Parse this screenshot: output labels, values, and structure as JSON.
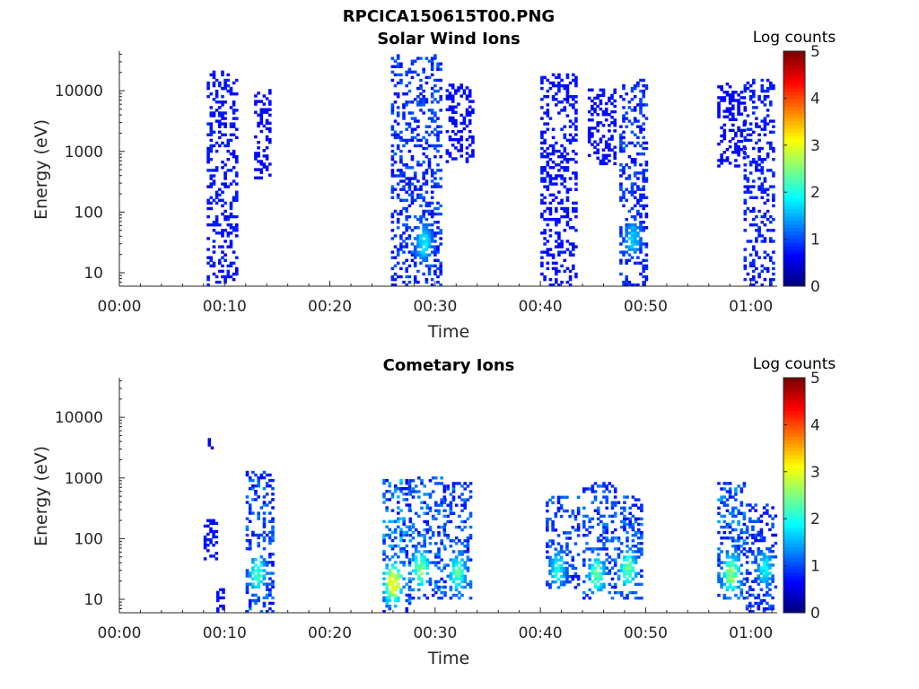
{
  "figure_title": "RPCICA150615T00.PNG",
  "chart_data": [
    {
      "type": "heatmap",
      "title": "Solar Wind Ions",
      "xlabel": "Time",
      "ylabel": "Energy (eV)",
      "x_ticks": [
        "00:00",
        "00:10",
        "00:20",
        "00:30",
        "00:40",
        "00:50",
        "01:00"
      ],
      "x_tick_minutes": [
        0,
        10,
        20,
        30,
        40,
        50,
        60
      ],
      "xlim_minutes": [
        0,
        62.5
      ],
      "y_scale": "log",
      "y_ticks": [
        "10",
        "100",
        "1000",
        "10000"
      ],
      "y_tick_values": [
        10,
        100,
        1000,
        10000
      ],
      "ylim": [
        6,
        45000
      ],
      "colorbar": {
        "label": "Log counts",
        "ticks": [
          "0",
          "1",
          "2",
          "3",
          "4",
          "5"
        ],
        "range": [
          0,
          5
        ],
        "colormap": "jet"
      },
      "bursts": [
        {
          "t": [
            8.3,
            11.2
          ],
          "e": [
            6,
            20000
          ],
          "count_peak": 0.7
        },
        {
          "t": [
            12.8,
            14.4
          ],
          "e": [
            350,
            10000
          ],
          "count_peak": 0.3
        },
        {
          "t": [
            25.8,
            30.5
          ],
          "e": [
            6,
            40000
          ],
          "count_peak": 1.7,
          "peak_t": 28.8,
          "peak_e": 30
        },
        {
          "t": [
            31.0,
            33.5
          ],
          "e": [
            650,
            13000
          ],
          "count_peak": 0.3
        },
        {
          "t": [
            40.0,
            43.5
          ],
          "e": [
            6,
            18000
          ],
          "count_peak": 0.6
        },
        {
          "t": [
            44.5,
            47.2
          ],
          "e": [
            600,
            10000
          ],
          "count_peak": 0.4
        },
        {
          "t": [
            47.5,
            50.0
          ],
          "e": [
            6,
            15000
          ],
          "count_peak": 1.5,
          "peak_t": 48.6,
          "peak_e": 35
        },
        {
          "t": [
            56.8,
            59.5
          ],
          "e": [
            550,
            13000
          ],
          "count_peak": 0.3
        },
        {
          "t": [
            59.3,
            62.2
          ],
          "e": [
            6,
            15000
          ],
          "count_peak": 0.9
        }
      ]
    },
    {
      "type": "heatmap",
      "title": "Cometary Ions",
      "xlabel": "Time",
      "ylabel": "Energy (eV)",
      "x_ticks": [
        "00:00",
        "00:10",
        "00:20",
        "00:30",
        "00:40",
        "00:50",
        "01:00"
      ],
      "x_tick_minutes": [
        0,
        10,
        20,
        30,
        40,
        50,
        60
      ],
      "xlim_minutes": [
        0,
        62.5
      ],
      "y_scale": "log",
      "y_ticks": [
        "10",
        "100",
        "1000",
        "10000"
      ],
      "y_tick_values": [
        10,
        100,
        1000,
        10000
      ],
      "ylim": [
        6,
        45000
      ],
      "colorbar": {
        "label": "Log counts",
        "ticks": [
          "0",
          "1",
          "2",
          "3",
          "4",
          "5"
        ],
        "range": [
          0,
          5
        ],
        "colormap": "jet"
      },
      "bursts": [
        {
          "t": [
            8.4,
            9.0
          ],
          "e": [
            3000,
            4500
          ],
          "count_peak": 0.3
        },
        {
          "t": [
            8.0,
            9.2
          ],
          "e": [
            40,
            200
          ],
          "count_peak": 0.6
        },
        {
          "t": [
            9.2,
            9.8
          ],
          "e": [
            6,
            15
          ],
          "count_peak": 0.9
        },
        {
          "t": [
            12.0,
            14.5
          ],
          "e": [
            6,
            1200
          ],
          "count_peak": 2.2,
          "peak_t": 13.0,
          "peak_e": 25
        },
        {
          "t": [
            25.0,
            27.5
          ],
          "e": [
            6,
            900
          ],
          "count_peak": 3.6,
          "peak_t": 25.9,
          "peak_e": 18
        },
        {
          "t": [
            27.5,
            30.8
          ],
          "e": [
            10,
            1000
          ],
          "count_peak": 2.6,
          "peak_t": 28.5,
          "peak_e": 30
        },
        {
          "t": [
            30.8,
            33.5
          ],
          "e": [
            10,
            800
          ],
          "count_peak": 2.3,
          "peak_t": 32.0,
          "peak_e": 25
        },
        {
          "t": [
            40.5,
            43.5
          ],
          "e": [
            15,
            500
          ],
          "count_peak": 1.9,
          "peak_t": 41.5,
          "peak_e": 30
        },
        {
          "t": [
            44.0,
            47.2
          ],
          "e": [
            10,
            800
          ],
          "count_peak": 2.4,
          "peak_t": 45.2,
          "peak_e": 25
        },
        {
          "t": [
            47.3,
            49.6
          ],
          "e": [
            10,
            500
          ],
          "count_peak": 2.4,
          "peak_t": 48.2,
          "peak_e": 30
        },
        {
          "t": [
            56.8,
            59.5
          ],
          "e": [
            10,
            800
          ],
          "count_peak": 2.7,
          "peak_t": 58.0,
          "peak_e": 25
        },
        {
          "t": [
            59.5,
            62.4
          ],
          "e": [
            6,
            350
          ],
          "count_peak": 1.8,
          "peak_t": 61.2,
          "peak_e": 30
        }
      ]
    }
  ]
}
